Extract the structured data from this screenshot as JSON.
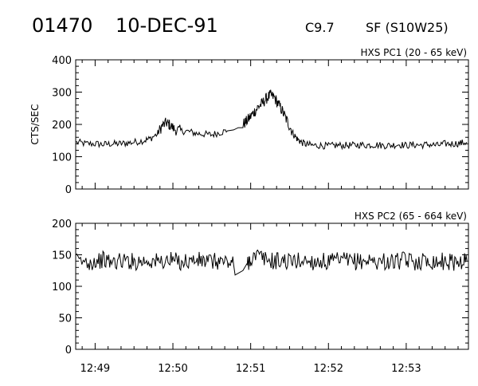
{
  "header": {
    "event_id": "01470",
    "date": "10-DEC-91",
    "goes_class": "C9.7",
    "flare_info": "SF (S10W25)"
  },
  "chart_data": [
    {
      "type": "line",
      "title": "HXS PC1 (20 - 65 keV)",
      "ylabel": "CTS/SEC",
      "xlabel": "",
      "ylim": [
        0,
        400
      ],
      "yticks": [
        0,
        100,
        200,
        300,
        400
      ],
      "xlim_minutes": [
        48.75,
        53.8
      ],
      "xticks": [
        {
          "value": 49,
          "label": "12:49"
        },
        {
          "value": 50,
          "label": "12:50"
        },
        {
          "value": 51,
          "label": "12:51"
        },
        {
          "value": 52,
          "label": "12:52"
        },
        {
          "value": 53,
          "label": "12:53"
        }
      ],
      "series": [
        {
          "x": [
            48.76,
            48.88,
            49.0,
            49.1,
            49.2,
            49.3,
            49.4,
            49.5,
            49.62,
            49.7,
            49.8,
            49.86,
            49.92,
            49.96,
            50.02,
            50.1,
            50.2,
            50.3,
            50.4,
            50.5,
            50.6,
            50.7,
            50.78,
            50.84,
            50.9,
            50.95,
            51.0,
            51.05,
            51.1,
            51.15,
            51.2,
            51.25,
            51.3,
            51.35,
            51.4,
            51.45,
            51.5,
            51.55,
            51.6,
            51.65,
            51.72,
            51.8,
            51.9,
            52.0,
            52.1,
            52.2,
            52.3,
            52.4,
            52.5,
            52.6,
            52.7,
            52.8,
            52.9,
            53.0,
            53.1,
            53.2,
            53.3,
            53.4,
            53.5,
            53.6,
            53.7,
            53.78
          ],
          "y": [
            145,
            140,
            140,
            138,
            140,
            140,
            142,
            145,
            150,
            155,
            170,
            195,
            205,
            198,
            185,
            180,
            178,
            172,
            170,
            168,
            175,
            180,
            183,
            190,
            200,
            210,
            225,
            240,
            255,
            265,
            280,
            290,
            285,
            265,
            245,
            220,
            195,
            170,
            155,
            145,
            138,
            135,
            135,
            133,
            135,
            135,
            135,
            137,
            136,
            137,
            135,
            135,
            138,
            135,
            137,
            136,
            138,
            135,
            140,
            140,
            142,
            145
          ]
        }
      ]
    },
    {
      "type": "line",
      "title": "HXS PC2 (65 - 664 keV)",
      "ylabel": "",
      "xlabel": "",
      "ylim": [
        0,
        200
      ],
      "yticks": [
        0,
        50,
        100,
        150,
        200
      ],
      "xlim_minutes": [
        48.75,
        53.8
      ],
      "xticks": [
        {
          "value": 49,
          "label": "12:49"
        },
        {
          "value": 50,
          "label": "12:50"
        },
        {
          "value": 51,
          "label": "12:51"
        },
        {
          "value": 52,
          "label": "12:52"
        },
        {
          "value": 53,
          "label": "12:53"
        }
      ],
      "series": [
        {
          "x": [
            48.76,
            48.9,
            49.0,
            49.1,
            49.2,
            49.3,
            49.4,
            49.5,
            49.6,
            49.7,
            49.8,
            49.9,
            50.0,
            50.1,
            50.2,
            50.3,
            50.4,
            50.5,
            50.6,
            50.7,
            50.78,
            50.8,
            50.9,
            50.95,
            51.0,
            51.1,
            51.2,
            51.3,
            51.4,
            51.5,
            51.6,
            51.7,
            51.8,
            51.9,
            52.0,
            52.1,
            52.2,
            52.3,
            52.4,
            52.5,
            52.6,
            52.7,
            52.8,
            52.9,
            53.0,
            53.1,
            53.2,
            53.3,
            53.4,
            53.5,
            53.6,
            53.7,
            53.78
          ],
          "y": [
            140,
            138,
            140,
            142,
            138,
            140,
            141,
            139,
            140,
            141,
            139,
            140,
            141,
            139,
            140,
            141,
            140,
            139,
            140,
            138,
            135,
            118,
            125,
            135,
            145,
            148,
            142,
            140,
            141,
            139,
            140,
            141,
            139,
            140,
            138,
            140,
            141,
            139,
            140,
            141,
            139,
            140,
            138,
            140,
            141,
            139,
            140,
            141,
            139,
            140,
            138,
            140,
            141
          ]
        }
      ]
    }
  ]
}
